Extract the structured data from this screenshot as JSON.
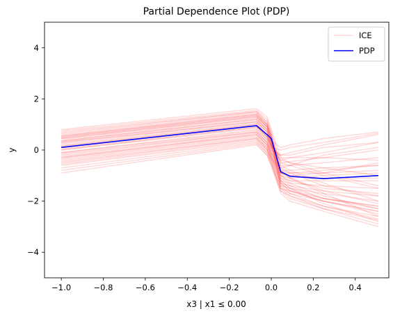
{
  "chart_data": {
    "type": "line",
    "title": "Partial Dependence Plot (PDP)",
    "xlabel": "x3 | x1 ≤ 0.00",
    "ylabel": "y",
    "xlim": [
      -1.08,
      0.56
    ],
    "ylim": [
      -5,
      5
    ],
    "xticks": [
      -1.0,
      -0.8,
      -0.6,
      -0.4,
      -0.2,
      0.0,
      0.2,
      0.4
    ],
    "xtick_labels": [
      "−1.0",
      "−0.8",
      "−0.6",
      "−0.4",
      "−0.2",
      "0.0",
      "0.2",
      "0.4"
    ],
    "yticks": [
      -4,
      -2,
      0,
      2,
      4
    ],
    "ytick_labels": [
      "−4",
      "−2",
      "0",
      "2",
      "4"
    ],
    "grid": false,
    "legend": {
      "placement": "top-right",
      "entries": [
        "ICE",
        "PDP"
      ]
    },
    "colors": {
      "ice": "#ff0000",
      "pdp": "#0000ff"
    },
    "x": [
      -1.0,
      -0.07,
      -0.02,
      0.0,
      0.045,
      0.09,
      0.25,
      0.51
    ],
    "series": [
      {
        "name": "PDP",
        "values": [
          0.1,
          0.95,
          0.6,
          0.45,
          -0.85,
          -1.03,
          -1.12,
          -1.0
        ]
      }
    ],
    "ice_curves": [
      [
        0.8,
        1.62,
        1.3,
        0.8,
        -0.3,
        -0.5,
        -0.9,
        -1.4
      ],
      [
        0.75,
        1.55,
        1.2,
        0.7,
        -0.6,
        -0.8,
        -1.3,
        -2.0
      ],
      [
        0.7,
        1.5,
        1.1,
        0.6,
        -0.8,
        -1.1,
        -1.7,
        -2.6
      ],
      [
        0.6,
        1.45,
        1.0,
        0.5,
        -1.2,
        -1.5,
        -2.1,
        -2.8
      ],
      [
        0.55,
        1.4,
        1.0,
        0.5,
        -1.5,
        -1.8,
        -2.3,
        -2.75
      ],
      [
        0.5,
        1.35,
        0.9,
        0.4,
        -1.0,
        -1.3,
        -1.8,
        -2.3
      ],
      [
        0.45,
        1.3,
        0.9,
        0.4,
        -0.9,
        -1.1,
        -1.6,
        -2.1
      ],
      [
        0.4,
        1.25,
        0.8,
        0.3,
        -1.3,
        -1.6,
        -2.0,
        -2.5
      ],
      [
        0.35,
        1.2,
        0.8,
        0.3,
        -1.1,
        -1.4,
        -1.9,
        -2.2
      ],
      [
        0.3,
        1.15,
        0.7,
        0.2,
        -0.7,
        -0.9,
        -1.4,
        -1.8
      ],
      [
        0.3,
        1.1,
        0.7,
        0.3,
        -0.5,
        -0.6,
        -1.0,
        -1.5
      ],
      [
        0.2,
        1.05,
        0.6,
        0.2,
        -0.4,
        -0.5,
        -0.7,
        -1.0
      ],
      [
        0.15,
        1.0,
        0.6,
        0.2,
        -0.3,
        -0.3,
        -0.3,
        -0.4
      ],
      [
        0.1,
        0.95,
        0.5,
        0.1,
        -0.2,
        -0.2,
        0.1,
        0.3
      ],
      [
        0.0,
        0.9,
        0.5,
        0.1,
        0.0,
        0.1,
        0.3,
        0.65
      ],
      [
        0.0,
        0.85,
        0.4,
        0.0,
        -0.2,
        -0.1,
        0.2,
        0.6
      ],
      [
        -0.1,
        0.8,
        0.4,
        0.0,
        -0.4,
        -0.3,
        -0.1,
        0.3
      ],
      [
        -0.1,
        0.75,
        0.3,
        -0.1,
        -0.6,
        -0.6,
        -0.5,
        -0.3
      ],
      [
        -0.2,
        0.7,
        0.3,
        -0.1,
        -0.8,
        -0.9,
        -0.8,
        -0.6
      ],
      [
        -0.25,
        0.65,
        0.2,
        -0.2,
        -1.0,
        -1.1,
        -1.0,
        -0.9
      ],
      [
        -0.3,
        0.6,
        0.2,
        -0.2,
        -1.1,
        -1.2,
        -1.2,
        -1.2
      ],
      [
        -0.35,
        0.55,
        0.1,
        -0.3,
        -1.2,
        -1.3,
        -1.4,
        -1.5
      ],
      [
        -0.4,
        0.5,
        0.1,
        -0.3,
        -1.3,
        -1.4,
        -1.6,
        -1.8
      ],
      [
        -0.5,
        0.45,
        0.0,
        -0.4,
        -1.4,
        -1.5,
        -1.7,
        -2.0
      ],
      [
        -0.55,
        0.4,
        0.0,
        -0.4,
        -1.5,
        -1.6,
        -1.9,
        -2.2
      ],
      [
        -0.6,
        0.35,
        -0.1,
        -0.5,
        -1.5,
        -1.7,
        -2.0,
        -2.4
      ],
      [
        -0.7,
        0.3,
        -0.1,
        -0.5,
        -1.6,
        -1.8,
        -2.2,
        -2.6
      ],
      [
        -0.8,
        0.25,
        -0.2,
        -0.6,
        -1.6,
        -1.9,
        -2.3,
        -2.9
      ],
      [
        -0.9,
        0.2,
        -0.2,
        -0.6,
        -1.7,
        -2.0,
        -2.4,
        -3.0
      ],
      [
        0.65,
        1.5,
        1.1,
        0.6,
        -0.9,
        -0.9,
        -0.9,
        -0.8
      ],
      [
        0.55,
        1.4,
        1.0,
        0.5,
        -0.8,
        -0.8,
        -0.7,
        -0.6
      ],
      [
        0.45,
        1.3,
        0.9,
        0.4,
        -0.9,
        -1.0,
        -1.1,
        -1.1
      ],
      [
        0.25,
        1.1,
        0.7,
        0.2,
        -1.0,
        -1.2,
        -1.5,
        -1.7
      ],
      [
        0.05,
        0.9,
        0.5,
        0.1,
        -1.2,
        -1.5,
        -1.9,
        -2.3
      ],
      [
        -0.15,
        0.7,
        0.3,
        -0.1,
        -0.9,
        -1.0,
        -0.9,
        -0.5
      ],
      [
        -0.45,
        0.45,
        0.05,
        -0.35,
        -0.7,
        -0.6,
        -0.2,
        0.1
      ],
      [
        0.35,
        1.2,
        0.8,
        0.35,
        0.1,
        0.2,
        0.45,
        0.7
      ],
      [
        0.5,
        1.35,
        0.95,
        0.45,
        -0.5,
        -0.45,
        -0.3,
        0.0
      ],
      [
        0.15,
        1.0,
        0.55,
        0.15,
        -1.4,
        -1.7,
        -2.2,
        -2.7
      ],
      [
        -0.3,
        0.6,
        0.2,
        -0.2,
        -1.3,
        -1.6,
        -2.0,
        -2.4
      ]
    ]
  }
}
